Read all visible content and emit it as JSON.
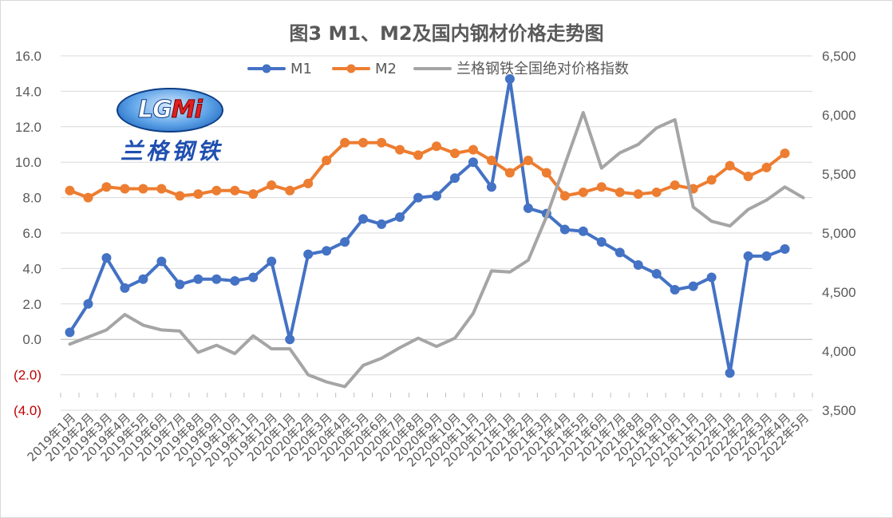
{
  "title": "图3 M1、M2及国内钢材价格走势图",
  "logo": {
    "latin_a": "LG",
    "latin_b": "Mi",
    "chinese": "兰格钢铁"
  },
  "chart_data": {
    "type": "line",
    "title": "图3 M1、M2及国内钢材价格走势图",
    "categories": [
      "2019年1月",
      "2019年2月",
      "2019年3月",
      "2019年4月",
      "2019年5月",
      "2019年6月",
      "2019年7月",
      "2019年8月",
      "2019年9月",
      "2019年10月",
      "2019年11月",
      "2019年12月",
      "2020年1月",
      "2020年2月",
      "2020年3月",
      "2020年4月",
      "2020年5月",
      "2020年6月",
      "2020年7月",
      "2020年8月",
      "2020年9月",
      "2020年10月",
      "2020年11月",
      "2020年12月",
      "2021年1月",
      "2021年2月",
      "2021年3月",
      "2021年4月",
      "2021年5月",
      "2021年6月",
      "2021年7月",
      "2021年8月",
      "2021年9月",
      "2021年10月",
      "2021年11月",
      "2021年12月",
      "2022年1月",
      "2022年2月",
      "2022年3月",
      "2022年4月",
      "2022年5月"
    ],
    "y_left": {
      "ylim": [
        -4.0,
        16.0
      ],
      "ticks": [
        "(4.0)",
        "(2.0)",
        "0.0",
        "2.0",
        "4.0",
        "6.0",
        "8.0",
        "10.0",
        "12.0",
        "14.0",
        "16.0"
      ],
      "tick_values": [
        -4,
        -2,
        0,
        2,
        4,
        6,
        8,
        10,
        12,
        14,
        16
      ],
      "negative_color": "#c00000"
    },
    "y_right": {
      "ylim": [
        3500,
        6500
      ],
      "ticks": [
        "3,500",
        "4,000",
        "4,500",
        "5,000",
        "5,500",
        "6,000",
        "6,500"
      ],
      "tick_values": [
        3500,
        4000,
        4500,
        5000,
        5500,
        6000,
        6500
      ]
    },
    "grid": true,
    "legend_position": "top-center",
    "series": [
      {
        "name": "M1",
        "axis": "left",
        "color": "#4472c4",
        "marker": true,
        "values": [
          0.4,
          2.0,
          4.6,
          2.9,
          3.4,
          4.4,
          3.1,
          3.4,
          3.4,
          3.3,
          3.5,
          4.4,
          0.0,
          4.8,
          5.0,
          5.5,
          6.8,
          6.5,
          6.9,
          8.0,
          8.1,
          9.1,
          10.0,
          8.6,
          14.7,
          7.4,
          7.1,
          6.2,
          6.1,
          5.5,
          4.9,
          4.2,
          3.7,
          2.8,
          3.0,
          3.5,
          -1.9,
          4.7,
          4.7,
          5.1,
          null
        ]
      },
      {
        "name": "M2",
        "axis": "left",
        "color": "#ed7d31",
        "marker": true,
        "values": [
          8.4,
          8.0,
          8.6,
          8.5,
          8.5,
          8.5,
          8.1,
          8.2,
          8.4,
          8.4,
          8.2,
          8.7,
          8.4,
          8.8,
          10.1,
          11.1,
          11.1,
          11.1,
          10.7,
          10.4,
          10.9,
          10.5,
          10.7,
          10.1,
          9.4,
          10.1,
          9.4,
          8.1,
          8.3,
          8.6,
          8.3,
          8.2,
          8.3,
          8.7,
          8.5,
          9.0,
          9.8,
          9.2,
          9.7,
          10.5,
          null
        ]
      },
      {
        "name": "兰格钢铁全国绝对价格指数",
        "axis": "right",
        "color": "#a5a5a5",
        "marker": false,
        "values": [
          4060,
          4120,
          4180,
          4310,
          4220,
          4180,
          4170,
          3990,
          4050,
          3980,
          4130,
          4020,
          4020,
          3800,
          3740,
          3700,
          3880,
          3940,
          4030,
          4110,
          4040,
          4110,
          4320,
          4680,
          4670,
          4770,
          5140,
          5580,
          6020,
          5550,
          5680,
          5750,
          5890,
          5960,
          5220,
          5100,
          5060,
          5200,
          5280,
          5390,
          5300
        ]
      }
    ]
  }
}
